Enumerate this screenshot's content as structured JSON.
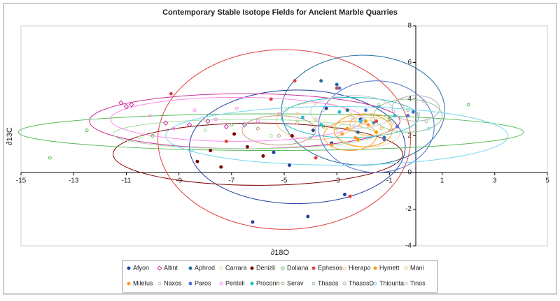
{
  "chart_data": {
    "type": "scatter",
    "title": "Contemporary Stable Isotope Fields for Ancient Marble Quarries",
    "x_label": "∂18O",
    "y_label": "∂13C",
    "xlim": [
      -15,
      5
    ],
    "xticks": [
      -15,
      -13,
      -11,
      -9,
      -7,
      -5,
      -3,
      -1,
      1,
      3,
      5
    ],
    "ylim": [
      -4,
      8
    ],
    "yticks": [
      -4,
      -2,
      0,
      2,
      4,
      6,
      8
    ],
    "series": [
      {
        "name": "Afyon",
        "color": "#1f3f9f",
        "marker": "filled",
        "x": [
          -6.2,
          -5.4,
          -4.8,
          -3.9,
          -3.2,
          -2.7,
          -2.1,
          -3.4,
          -4.1
        ],
        "y": [
          -2.7,
          1.1,
          0.4,
          2.3,
          1.6,
          -1.2,
          2.9,
          3.5,
          -2.4
        ],
        "field": {
          "cx": -4.5,
          "cy": 1.4,
          "rx": 4.1,
          "ry": 3.1
        }
      },
      {
        "name": "Altint",
        "color": "#cc3399",
        "marker": "diamond",
        "x": [
          -11.2,
          -11.0,
          -10.8,
          -9.5,
          -8.6,
          -7.9,
          -7.2,
          -6.5
        ],
        "y": [
          3.8,
          3.6,
          3.7,
          2.7,
          2.6,
          2.8,
          2.5,
          2.6
        ],
        "field": {
          "cx": -6.5,
          "cy": 2.8,
          "rx": 5.9,
          "ry": 1.5
        }
      },
      {
        "name": "Aphrod",
        "color": "#1f6fa0",
        "marker": "filled",
        "x": [
          -3.6,
          -3.0,
          -2.6,
          -2.2,
          -1.6,
          -1.2
        ],
        "y": [
          5.0,
          4.8,
          3.4,
          2.2,
          2.7,
          1.9
        ],
        "field": {
          "cx": -2.0,
          "cy": 3.4,
          "rx": 3.1,
          "ry": 3.0
        }
      },
      {
        "name": "Carrara",
        "color": "#eed8a8",
        "marker": "open",
        "x": [
          -2.5,
          -2.0,
          -1.6,
          -1.2
        ],
        "y": [
          2.3,
          2.0,
          2.6,
          2.1
        ],
        "field": {
          "cx": -1.8,
          "cy": 2.2,
          "rx": 1.2,
          "ry": 0.8
        }
      },
      {
        "name": "Denizli",
        "color": "#7f0000",
        "marker": "filled",
        "x": [
          -8.3,
          -7.8,
          -7.4,
          -6.9,
          -6.4,
          -5.8,
          -4.7
        ],
        "y": [
          0.6,
          1.2,
          0.3,
          2.1,
          1.4,
          0.9,
          2.0
        ],
        "field": {
          "cx": -6.0,
          "cy": 1.0,
          "rx": 5.5,
          "ry": 1.7
        }
      },
      {
        "name": "Doliana",
        "color": "#55bb55",
        "marker": "open",
        "x": [
          -13.9,
          -12.5,
          -10.0,
          -7.0,
          -3.5,
          -1.0,
          2.0
        ],
        "y": [
          0.8,
          2.3,
          2.0,
          2.6,
          2.5,
          2.9,
          3.7
        ],
        "field": {
          "cx": -5.5,
          "cy": 2.2,
          "rx": 9.6,
          "ry": 1.0
        }
      },
      {
        "name": "Ephesos",
        "color": "#e04040",
        "marker": "filled",
        "x": [
          -9.3,
          -7.2,
          -5.5,
          -4.6,
          -3.8,
          -2.5,
          -1.5,
          -3.0
        ],
        "y": [
          4.3,
          1.7,
          4.0,
          5.0,
          0.8,
          -1.3,
          2.8,
          4.6
        ],
        "field": {
          "cx": -5.0,
          "cy": 1.8,
          "rx": 4.8,
          "ry": 4.9
        }
      },
      {
        "name": "Hierapo",
        "color": "#f0c890",
        "marker": "open",
        "x": [
          -4.5,
          -3.8,
          -3.1
        ],
        "y": [
          3.2,
          2.9,
          2.4
        ],
        "field": {
          "cx": -3.8,
          "cy": 2.8,
          "rx": 1.5,
          "ry": 1.0
        }
      },
      {
        "name": "Hymett",
        "color": "#ff9900",
        "marker": "filled",
        "x": [
          -2.6,
          -2.2,
          -1.9,
          -1.5
        ],
        "y": [
          2.4,
          1.8,
          2.8,
          2.2
        ],
        "field": {
          "cx": -2.0,
          "cy": 2.3,
          "rx": 1.1,
          "ry": 0.9
        }
      },
      {
        "name": "Mani",
        "color": "#f0c060",
        "marker": "open",
        "x": [
          -2.1,
          -1.7,
          -1.3
        ],
        "y": [
          2.6,
          2.9,
          2.4
        ],
        "field": {
          "cx": -1.7,
          "cy": 2.6,
          "rx": 0.8,
          "ry": 0.6
        }
      },
      {
        "name": "Miletus",
        "color": "#ff9933",
        "marker": "filled",
        "x": [
          -3.2,
          -2.8,
          -2.3,
          -1.8
        ],
        "y": [
          1.5,
          2.1,
          1.9,
          2.6
        ],
        "field": {
          "cx": -2.5,
          "cy": 2.0,
          "rx": 1.0,
          "ry": 0.8
        }
      },
      {
        "name": "Naxos",
        "color": "#a8dca8",
        "marker": "open",
        "x": [
          -10.5,
          -8.0,
          -5.5,
          -3.0
        ],
        "y": [
          1.9,
          2.3,
          2.0,
          2.4
        ],
        "field": {
          "cx": -6.5,
          "cy": 2.1,
          "rx": 5.0,
          "ry": 0.8
        }
      },
      {
        "name": "Paros",
        "color": "#5070d0",
        "marker": "filled",
        "x": [
          -2.9,
          -1.9,
          -1.2,
          -0.7,
          -0.3,
          -0.1
        ],
        "y": [
          4.6,
          3.4,
          1.8,
          2.5,
          3.1,
          3.3
        ],
        "field": {
          "cx": -1.5,
          "cy": 2.5,
          "rx": 2.2,
          "ry": 2.5
        }
      },
      {
        "name": "Penteli",
        "color": "#ff88ee",
        "marker": "open",
        "x": [
          -10.1,
          -9.2,
          -8.4,
          -7.6,
          -6.8,
          -6.0,
          -5.2
        ],
        "y": [
          3.1,
          2.4,
          3.4,
          2.9,
          3.5,
          2.8,
          3.2
        ],
        "field": {
          "cx": -6.8,
          "cy": 2.9,
          "rx": 4.8,
          "ry": 1.2
        }
      },
      {
        "name": "Proconn",
        "color": "#20c0d0",
        "marker": "filled",
        "x": [
          -4.3,
          -3.6,
          -2.9,
          -2.1,
          -1.4,
          -0.8
        ],
        "y": [
          3.0,
          2.6,
          3.3,
          2.8,
          3.6,
          3.1
        ],
        "field": {
          "cx": -2.5,
          "cy": 3.0,
          "rx": 2.6,
          "ry": 1.1
        }
      },
      {
        "name": "Serav",
        "color": "#c0a080",
        "marker": "open",
        "x": [
          -6.0,
          -5.2,
          -4.5
        ],
        "y": [
          2.4,
          2.0,
          2.7
        ],
        "field": {
          "cx": -5.2,
          "cy": 2.3,
          "rx": 1.4,
          "ry": 0.8
        }
      },
      {
        "name": "Thasos",
        "color": "#90c090",
        "marker": "open",
        "x": [
          -1.0,
          -0.3,
          0.4
        ],
        "y": [
          3.0,
          3.4,
          2.8
        ],
        "field": {
          "cx": -0.3,
          "cy": 3.1,
          "rx": 1.3,
          "ry": 0.9
        }
      },
      {
        "name": "ThasosD",
        "color": "#b0b0b0",
        "marker": "open",
        "x": [
          -0.5,
          0.1,
          0.3
        ],
        "y": [
          3.6,
          3.2,
          3.9
        ],
        "field": {
          "cx": 0.0,
          "cy": 3.5,
          "rx": 0.9,
          "ry": 0.7
        }
      },
      {
        "name": "Thiounta",
        "color": "#70d8f0",
        "marker": "open",
        "x": [
          -8.5,
          -6.5,
          -4.0,
          -2.0,
          0.5
        ],
        "y": [
          1.2,
          2.6,
          1.9,
          2.9,
          2.4
        ],
        "field": {
          "cx": -3.0,
          "cy": 2.0,
          "rx": 6.5,
          "ry": 1.6
        }
      },
      {
        "name": "Tinos",
        "color": "#c8c8c8",
        "marker": "open",
        "x": [
          -3.5,
          -2.4,
          -1.4
        ],
        "y": [
          3.4,
          3.0,
          3.7
        ],
        "field": {
          "cx": -2.4,
          "cy": 3.3,
          "rx": 1.6,
          "ry": 0.9
        }
      }
    ]
  }
}
